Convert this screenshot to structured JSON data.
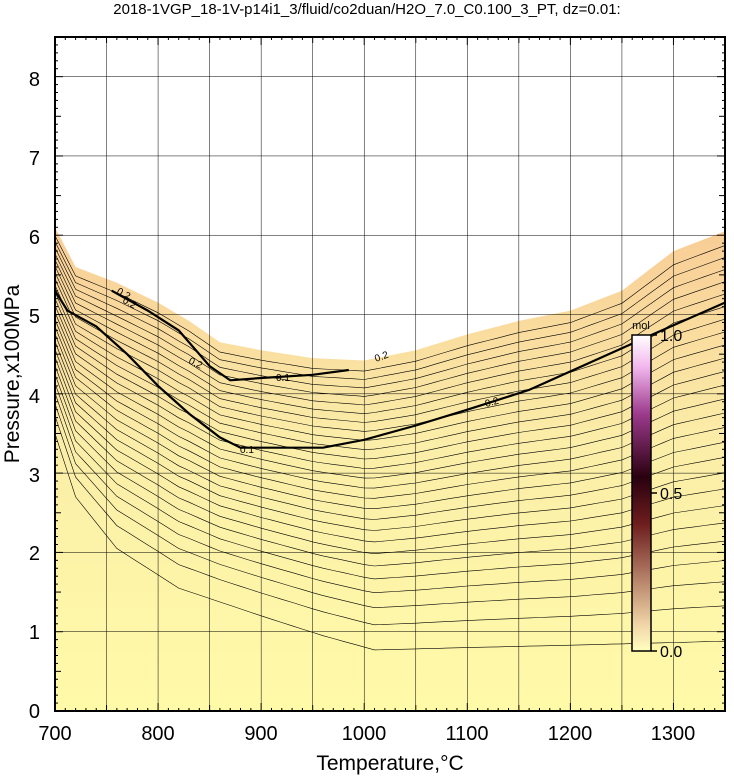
{
  "chart_data": {
    "type": "contour",
    "title": "2018-1VGP_18-1V-p14i1_3/fluid/co2duan/H2O_7.0_C0.100_3_PT, dz=0.01:",
    "xlabel": "Temperature,°C",
    "ylabel": "Pressure,x100MPa",
    "xlim": [
      700,
      1350
    ],
    "ylim": [
      0,
      8.5
    ],
    "x_ticks": [
      700,
      800,
      900,
      1000,
      1100,
      1200,
      1300
    ],
    "y_ticks": [
      0,
      1,
      2,
      3,
      4,
      5,
      6,
      7,
      8
    ],
    "grid": true,
    "major_contours": [
      {
        "level": 0.1,
        "label": "0.1",
        "points": [
          [
            700,
            5.3
          ],
          [
            712,
            5.05
          ],
          [
            740,
            4.85
          ],
          [
            770,
            4.5
          ],
          [
            800,
            4.1
          ],
          [
            830,
            3.75
          ],
          [
            860,
            3.45
          ],
          [
            880,
            3.32
          ],
          [
            900,
            3.32
          ],
          [
            960,
            3.32
          ],
          [
            1000,
            3.42
          ],
          [
            1050,
            3.6
          ],
          [
            1100,
            3.8
          ],
          [
            1160,
            4.05
          ],
          [
            1220,
            4.4
          ],
          [
            1280,
            4.75
          ],
          [
            1350,
            5.15
          ]
        ],
        "label_at": [
          885,
          3.32
        ]
      },
      {
        "level": 0.2,
        "label": "0.2",
        "points": [
          [
            755,
            5.3
          ],
          [
            790,
            5.05
          ],
          [
            820,
            4.8
          ],
          [
            850,
            4.35
          ],
          [
            870,
            4.17
          ],
          [
            900,
            4.2
          ],
          [
            950,
            4.24
          ],
          [
            985,
            4.3
          ]
        ],
        "label_at": [
          920,
          4.2
        ]
      }
    ],
    "fluid_boundary": [
      [
        700,
        6.1
      ],
      [
        720,
        5.6
      ],
      [
        760,
        5.4
      ],
      [
        800,
        5.15
      ],
      [
        830,
        4.92
      ],
      [
        860,
        4.65
      ],
      [
        900,
        4.55
      ],
      [
        950,
        4.45
      ],
      [
        1000,
        4.42
      ],
      [
        1050,
        4.55
      ],
      [
        1100,
        4.75
      ],
      [
        1150,
        4.92
      ],
      [
        1200,
        5.05
      ],
      [
        1250,
        5.3
      ],
      [
        1300,
        5.8
      ],
      [
        1350,
        6.05
      ]
    ],
    "contour_labels": [
      "0.2",
      "0.2",
      "0.1",
      "0.1",
      "0.2",
      "0.2",
      "0.2"
    ],
    "colorbar": {
      "unit": "mol",
      "ticks": [
        "0.0",
        "0.5",
        "1.0"
      ],
      "range": [
        0,
        1
      ]
    }
  },
  "colors": {
    "fill_low": "#fff7b0",
    "fill_high": "#fbd9a0",
    "contour": "#000000",
    "grid": "#000000"
  }
}
